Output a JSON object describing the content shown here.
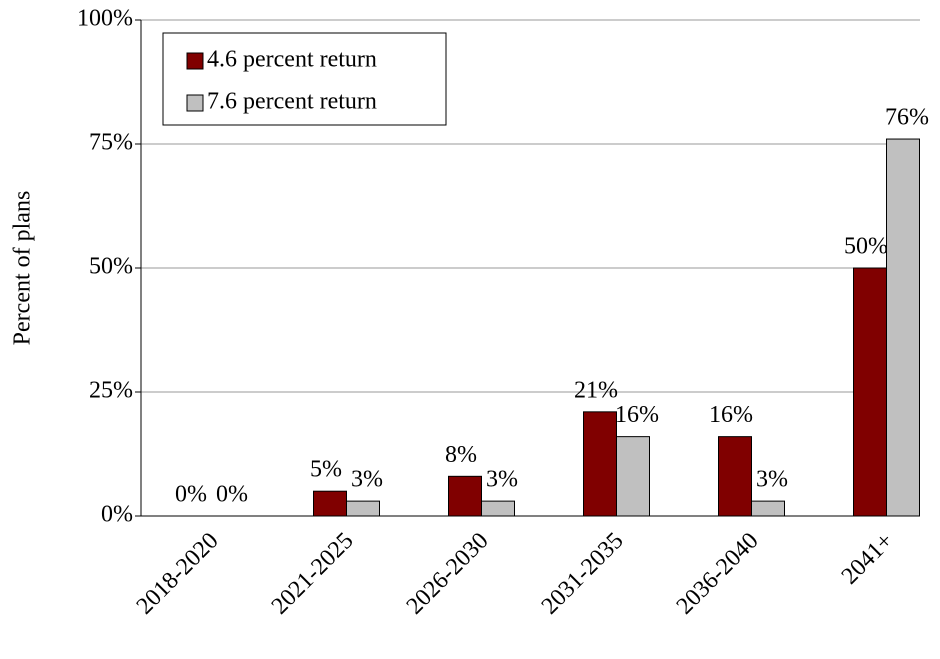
{
  "chart_data": {
    "type": "bar",
    "y_label": "Percent of plans",
    "categories": [
      "2018-2020",
      "2021-2025",
      "2026-2030",
      "2031-2035",
      "2036-2040",
      "2041+"
    ],
    "series": [
      {
        "name": "4.6 percent return",
        "color": "#800000",
        "values": [
          0,
          5,
          8,
          21,
          16,
          50
        ],
        "value_labels": [
          "0%",
          "5%",
          "8%",
          "21%",
          "16%",
          "50%"
        ]
      },
      {
        "name": "7.6 percent return",
        "color": "#c0c0c0",
        "values": [
          0,
          3,
          3,
          16,
          3,
          76
        ],
        "value_labels": [
          "0%",
          "3%",
          "3%",
          "16%",
          "3%",
          "76%"
        ]
      }
    ],
    "ylim": [
      0,
      100
    ],
    "yticks": [
      {
        "value": 0,
        "label": "0%"
      },
      {
        "value": 25,
        "label": "25%"
      },
      {
        "value": 50,
        "label": "50%"
      },
      {
        "value": 75,
        "label": "75%"
      },
      {
        "value": 100,
        "label": "100%"
      }
    ],
    "grid": true,
    "legend": "upper left"
  }
}
